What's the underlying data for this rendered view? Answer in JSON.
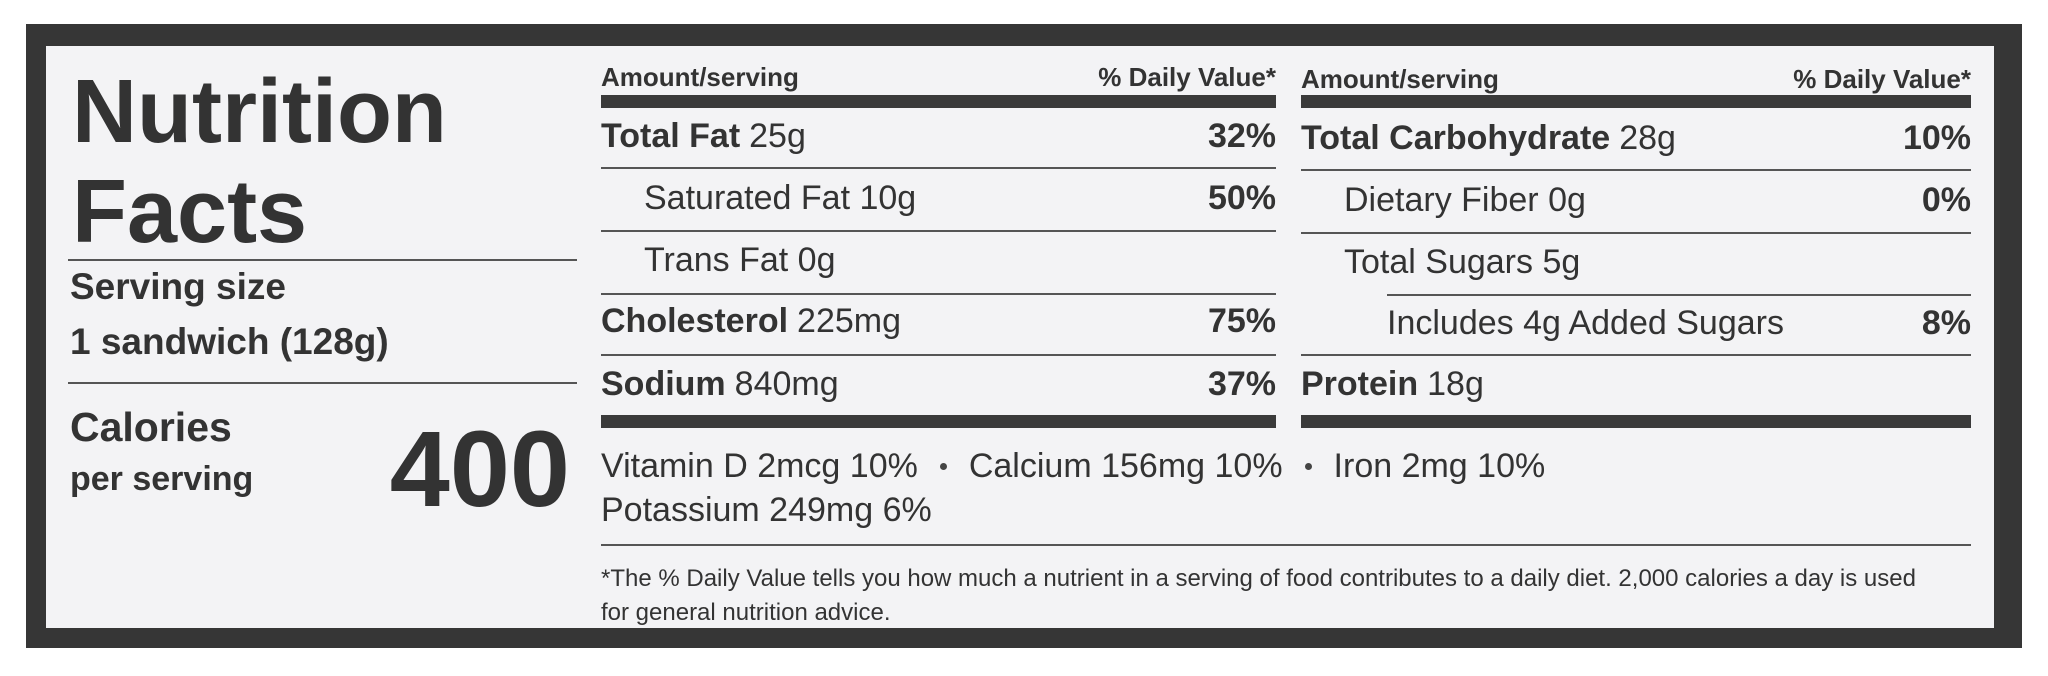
{
  "label": {
    "title": "Nutrition Facts",
    "serving_size": {
      "label": "Serving size",
      "value": "1 sandwich (128g)"
    },
    "calories": {
      "label": "Calories",
      "sublabel": "per serving",
      "value": 400
    },
    "left": {
      "header": {
        "amount": "Amount/serving",
        "dv": "% Daily Value*"
      },
      "rows": [
        {
          "name": "Total Fat",
          "amount": "25g",
          "dv": "32%"
        },
        {
          "name": "Saturated Fat",
          "amount": "10g",
          "dv": "50%"
        },
        {
          "name": "Trans Fat",
          "amount": "0g"
        },
        {
          "name": "Cholesterol",
          "amount": "225mg",
          "dv": "75%"
        },
        {
          "name": "Sodium",
          "amount": "840mg",
          "dv": "37%"
        }
      ]
    },
    "right": {
      "header": {
        "amount": "Amount/serving",
        "dv": "% Daily Value*"
      },
      "rows": [
        {
          "name": "Total Carbohydrate",
          "amount": "28g",
          "dv": "10%"
        },
        {
          "name": "Dietary Fiber",
          "amount": "0g",
          "dv": "0%"
        },
        {
          "name": "Total Sugars",
          "amount": "5g"
        },
        {
          "name": "Includes 4g Added Sugars",
          "dv": "8%"
        },
        {
          "name": "Protein",
          "amount": "18g"
        }
      ]
    },
    "vitamins": [
      "Vitamin D 2mcg 10%",
      "Calcium 156mg 10%",
      "Iron 2mg 10%",
      "Potassium 249mg 6%"
    ],
    "footnote": "*The % Daily Value tells you how much a nutrient in a serving of food contributes to a daily diet. 2,000 calories a day is used for general nutrition advice."
  }
}
